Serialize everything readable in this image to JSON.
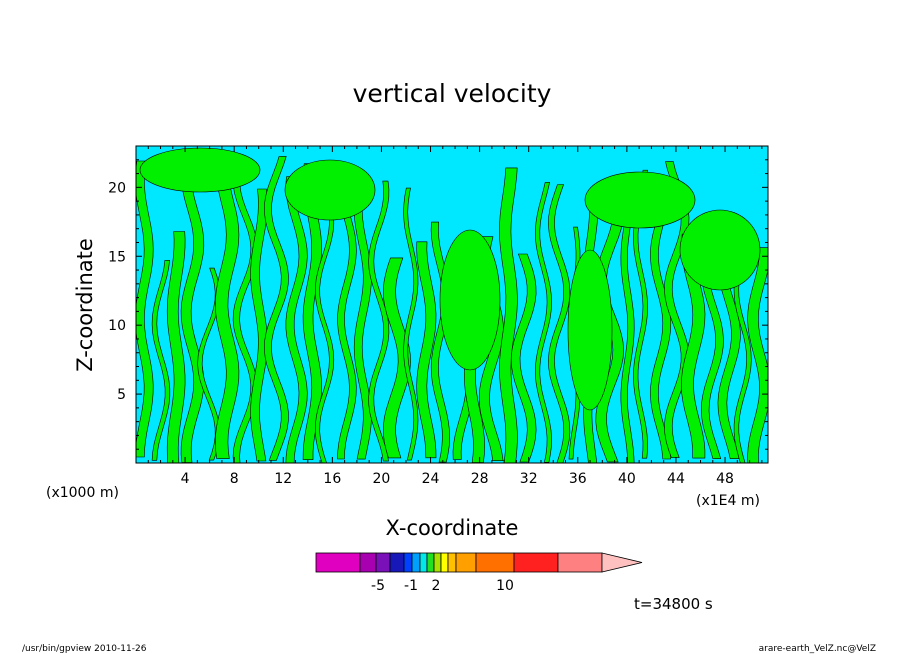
{
  "chart_data": {
    "type": "heatmap",
    "title": "vertical velocity",
    "xlabel": "X-coordinate",
    "ylabel": "Z-coordinate",
    "x_unit_label": "(x1000 m)",
    "x_scale_label": "(x1E4 m)",
    "xlim": [
      0,
      51.5
    ],
    "ylim": [
      0,
      23
    ],
    "x_ticks": [
      "4",
      "8",
      "12",
      "16",
      "20",
      "24",
      "28",
      "32",
      "36",
      "40",
      "44",
      "48"
    ],
    "y_ticks": [
      "5",
      "10",
      "15",
      "20"
    ],
    "colorbar": {
      "colors": [
        "#e000c0",
        "#a800b0",
        "#7a10b8",
        "#1818b8",
        "#0040ff",
        "#00a0ff",
        "#00e8e8",
        "#20e020",
        "#a8e000",
        "#ffff00",
        "#ffc000",
        "#ffa000",
        "#ff7000",
        "#ff2020",
        "#ff8080",
        "#ffc0c0"
      ],
      "labels": [
        "-5",
        "-1",
        "2",
        "10"
      ]
    },
    "field_colors": {
      "negative": "#00e8ff",
      "positive": "#00f000"
    },
    "time_label": "t=34800 s"
  },
  "footer": {
    "left": "/usr/bin/gpview   2010-11-26",
    "right": "arare-earth_VelZ.nc@VelZ"
  }
}
